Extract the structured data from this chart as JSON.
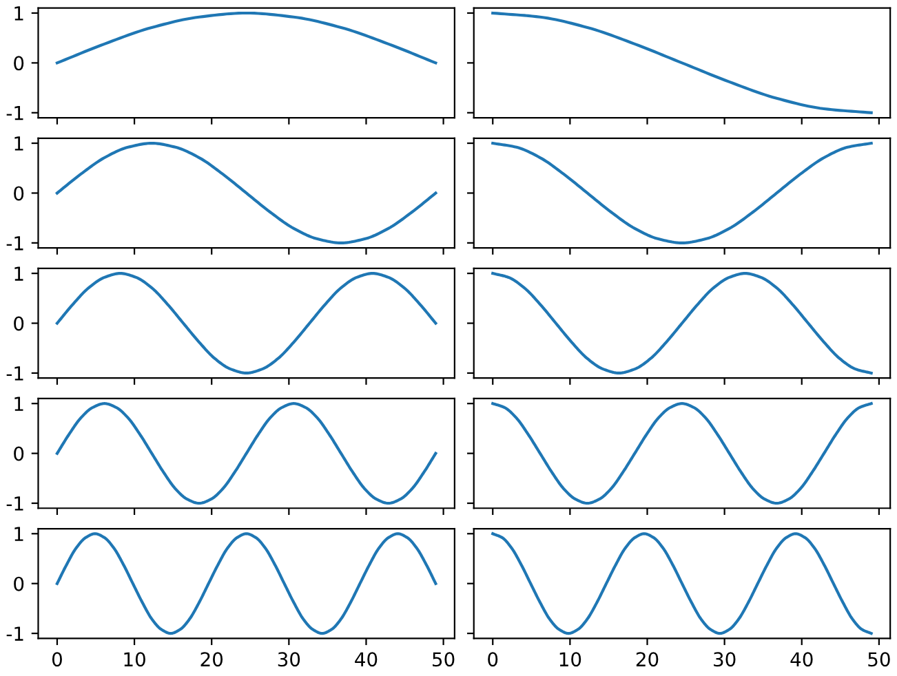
{
  "chart_data": [
    {
      "type": "line",
      "color": "#1f77b4",
      "xlim": [
        -2.45,
        51.45
      ],
      "ylim": [
        -1.1,
        1.1
      ],
      "xticks": [
        0,
        10,
        20,
        30,
        40,
        50
      ],
      "yticks": [
        -1,
        0,
        1
      ],
      "tick_labels": "y",
      "x": [
        0,
        6.125,
        12.25,
        18.375,
        24.5,
        30.625,
        36.75,
        42.875,
        49
      ],
      "values": [
        0,
        0.38,
        0.71,
        0.92,
        1,
        0.92,
        0.71,
        0.38,
        0
      ]
    },
    {
      "type": "line",
      "color": "#1f77b4",
      "xlim": [
        -2.45,
        51.45
      ],
      "ylim": [
        -1.1,
        1.1
      ],
      "xticks": [
        0,
        10,
        20,
        30,
        40,
        50
      ],
      "yticks": [
        -1,
        0,
        1
      ],
      "tick_labels": false,
      "x": [
        0,
        6.125,
        12.25,
        18.375,
        24.5,
        30.625,
        36.75,
        42.875,
        49
      ],
      "values": [
        1,
        0.92,
        0.71,
        0.38,
        0,
        -0.38,
        -0.71,
        -0.92,
        -1
      ]
    },
    {
      "type": "line",
      "color": "#1f77b4",
      "xlim": [
        -2.45,
        51.45
      ],
      "ylim": [
        -1.1,
        1.1
      ],
      "xticks": [
        0,
        10,
        20,
        30,
        40,
        50
      ],
      "yticks": [
        -1,
        0,
        1
      ],
      "tick_labels": "y",
      "x": [
        0,
        3.06,
        6.13,
        9.19,
        12.25,
        15.31,
        18.38,
        21.44,
        24.5,
        27.56,
        30.63,
        33.69,
        36.75,
        39.81,
        42.88,
        45.94,
        49
      ],
      "values": [
        0,
        0.38,
        0.71,
        0.92,
        1,
        0.92,
        0.71,
        0.38,
        0,
        -0.38,
        -0.71,
        -0.92,
        -1,
        -0.92,
        -0.71,
        -0.38,
        0
      ]
    },
    {
      "type": "line",
      "color": "#1f77b4",
      "xlim": [
        -2.45,
        51.45
      ],
      "ylim": [
        -1.1,
        1.1
      ],
      "xticks": [
        0,
        10,
        20,
        30,
        40,
        50
      ],
      "yticks": [
        -1,
        0,
        1
      ],
      "tick_labels": false,
      "x": [
        0,
        3.06,
        6.13,
        9.19,
        12.25,
        15.31,
        18.38,
        21.44,
        24.5,
        27.56,
        30.63,
        33.69,
        36.75,
        39.81,
        42.88,
        45.94,
        49
      ],
      "values": [
        1,
        0.92,
        0.71,
        0.38,
        0,
        -0.38,
        -0.71,
        -0.92,
        -1,
        -0.92,
        -0.71,
        -0.38,
        0,
        0.38,
        0.71,
        0.92,
        1
      ]
    },
    {
      "type": "line",
      "color": "#1f77b4",
      "xlim": [
        -2.45,
        51.45
      ],
      "ylim": [
        -1.1,
        1.1
      ],
      "xticks": [
        0,
        10,
        20,
        30,
        40,
        50
      ],
      "yticks": [
        -1,
        0,
        1
      ],
      "tick_labels": "y",
      "x": [
        0,
        2.04,
        4.08,
        6.13,
        8.17,
        10.21,
        12.25,
        14.29,
        16.33,
        18.38,
        20.42,
        22.46,
        24.5,
        26.54,
        28.58,
        30.63,
        32.67,
        34.71,
        36.75,
        38.79,
        40.83,
        42.88,
        44.92,
        46.96,
        49
      ],
      "values": [
        0,
        0.38,
        0.71,
        0.92,
        1,
        0.92,
        0.71,
        0.38,
        0,
        -0.38,
        -0.71,
        -0.92,
        -1,
        -0.92,
        -0.71,
        -0.38,
        0,
        0.38,
        0.71,
        0.92,
        1,
        0.92,
        0.71,
        0.38,
        0
      ]
    },
    {
      "type": "line",
      "color": "#1f77b4",
      "xlim": [
        -2.45,
        51.45
      ],
      "ylim": [
        -1.1,
        1.1
      ],
      "xticks": [
        0,
        10,
        20,
        30,
        40,
        50
      ],
      "yticks": [
        -1,
        0,
        1
      ],
      "tick_labels": false,
      "x": [
        0,
        2.04,
        4.08,
        6.13,
        8.17,
        10.21,
        12.25,
        14.29,
        16.33,
        18.38,
        20.42,
        22.46,
        24.5,
        26.54,
        28.58,
        30.63,
        32.67,
        34.71,
        36.75,
        38.79,
        40.83,
        42.88,
        44.92,
        46.96,
        49
      ],
      "values": [
        1,
        0.92,
        0.71,
        0.38,
        0,
        -0.38,
        -0.71,
        -0.92,
        -1,
        -0.92,
        -0.71,
        -0.38,
        0,
        0.38,
        0.71,
        0.92,
        1,
        0.92,
        0.71,
        0.38,
        0,
        -0.38,
        -0.71,
        -0.92,
        -1
      ]
    },
    {
      "type": "line",
      "color": "#1f77b4",
      "xlim": [
        -2.45,
        51.45
      ],
      "ylim": [
        -1.1,
        1.1
      ],
      "xticks": [
        0,
        10,
        20,
        30,
        40,
        50
      ],
      "yticks": [
        -1,
        0,
        1
      ],
      "tick_labels": "y",
      "x": [
        0,
        1.53,
        3.06,
        4.59,
        6.13,
        7.66,
        9.19,
        10.72,
        12.25,
        13.78,
        15.31,
        16.84,
        18.38,
        19.91,
        21.44,
        22.97,
        24.5,
        26.03,
        27.56,
        29.09,
        30.63,
        32.16,
        33.69,
        35.22,
        36.75,
        38.28,
        39.81,
        41.34,
        42.88,
        44.41,
        45.94,
        47.47,
        49
      ],
      "values": [
        0,
        0.38,
        0.71,
        0.92,
        1,
        0.92,
        0.71,
        0.38,
        0,
        -0.38,
        -0.71,
        -0.92,
        -1,
        -0.92,
        -0.71,
        -0.38,
        0,
        0.38,
        0.71,
        0.92,
        1,
        0.92,
        0.71,
        0.38,
        0,
        -0.38,
        -0.71,
        -0.92,
        -1,
        -0.92,
        -0.71,
        -0.38,
        0
      ]
    },
    {
      "type": "line",
      "color": "#1f77b4",
      "xlim": [
        -2.45,
        51.45
      ],
      "ylim": [
        -1.1,
        1.1
      ],
      "xticks": [
        0,
        10,
        20,
        30,
        40,
        50
      ],
      "yticks": [
        -1,
        0,
        1
      ],
      "tick_labels": false,
      "x": [
        0,
        1.53,
        3.06,
        4.59,
        6.13,
        7.66,
        9.19,
        10.72,
        12.25,
        13.78,
        15.31,
        16.84,
        18.38,
        19.91,
        21.44,
        22.97,
        24.5,
        26.03,
        27.56,
        29.09,
        30.63,
        32.16,
        33.69,
        35.22,
        36.75,
        38.28,
        39.81,
        41.34,
        42.88,
        44.41,
        45.94,
        47.47,
        49
      ],
      "values": [
        1,
        0.92,
        0.71,
        0.38,
        0,
        -0.38,
        -0.71,
        -0.92,
        -1,
        -0.92,
        -0.71,
        -0.38,
        0,
        0.38,
        0.71,
        0.92,
        1,
        0.92,
        0.71,
        0.38,
        0,
        -0.38,
        -0.71,
        -0.92,
        -1,
        -0.92,
        -0.71,
        -0.38,
        0,
        0.38,
        0.71,
        0.92,
        1
      ]
    },
    {
      "type": "line",
      "color": "#1f77b4",
      "xlim": [
        -2.45,
        51.45
      ],
      "ylim": [
        -1.1,
        1.1
      ],
      "xticks": [
        0,
        10,
        20,
        30,
        40,
        50
      ],
      "yticks": [
        -1,
        0,
        1
      ],
      "x": [
        0,
        1.23,
        2.45,
        3.68,
        4.9,
        6.13,
        7.35,
        8.58,
        9.8,
        11.03,
        12.25,
        13.48,
        14.7,
        15.93,
        17.15,
        18.38,
        19.6,
        20.83,
        22.05,
        23.28,
        24.5,
        25.73,
        26.95,
        28.18,
        29.4,
        30.63,
        31.85,
        33.08,
        34.3,
        35.53,
        36.75,
        37.98,
        39.2,
        40.43,
        41.65,
        42.88,
        44.1,
        45.33,
        46.55,
        47.78,
        49
      ],
      "values": [
        0,
        0.38,
        0.71,
        0.92,
        1,
        0.92,
        0.71,
        0.38,
        0,
        -0.38,
        -0.71,
        -0.92,
        -1,
        -0.92,
        -0.71,
        -0.38,
        0,
        0.38,
        0.71,
        0.92,
        1,
        0.92,
        0.71,
        0.38,
        0,
        -0.38,
        -0.71,
        -0.92,
        -1,
        -0.92,
        -0.71,
        -0.38,
        0,
        0.38,
        0.71,
        0.92,
        1,
        0.92,
        0.71,
        0.38,
        0
      ]
    },
    {
      "type": "line",
      "color": "#1f77b4",
      "xlim": [
        -2.45,
        51.45
      ],
      "ylim": [
        -1.1,
        1.1
      ],
      "xticks": [
        0,
        10,
        20,
        30,
        40,
        50
      ],
      "yticks": [
        -1,
        0,
        1
      ],
      "tick_labels": "x",
      "x": [
        0,
        1.23,
        2.45,
        3.68,
        4.9,
        6.13,
        7.35,
        8.58,
        9.8,
        11.03,
        12.25,
        13.48,
        14.7,
        15.93,
        17.15,
        18.38,
        19.6,
        20.83,
        22.05,
        23.28,
        24.5,
        25.73,
        26.95,
        28.18,
        29.4,
        30.63,
        31.85,
        33.08,
        34.3,
        35.53,
        36.75,
        37.98,
        39.2,
        40.43,
        41.65,
        42.88,
        44.1,
        45.33,
        46.55,
        47.78,
        49
      ],
      "values": [
        1,
        0.92,
        0.71,
        0.38,
        0,
        -0.38,
        -0.71,
        -0.92,
        -1,
        -0.92,
        -0.71,
        -0.38,
        0,
        0.38,
        0.71,
        0.92,
        1,
        0.92,
        0.71,
        0.38,
        0,
        -0.38,
        -0.71,
        -0.92,
        -1,
        -0.92,
        -0.71,
        -0.38,
        0,
        0.38,
        0.71,
        0.92,
        1,
        0.92,
        0.71,
        0.38,
        0,
        -0.38,
        -0.71,
        -0.92,
        -1
      ]
    }
  ]
}
